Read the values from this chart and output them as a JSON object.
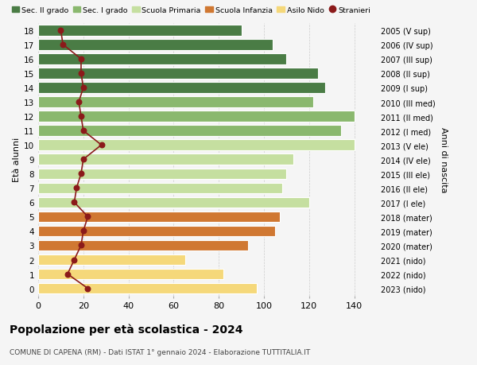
{
  "ages": [
    0,
    1,
    2,
    3,
    4,
    5,
    6,
    7,
    8,
    9,
    10,
    11,
    12,
    13,
    14,
    15,
    16,
    17,
    18
  ],
  "right_labels": [
    "2023 (nido)",
    "2022 (nido)",
    "2021 (nido)",
    "2020 (mater)",
    "2019 (mater)",
    "2018 (mater)",
    "2017 (I ele)",
    "2016 (II ele)",
    "2015 (III ele)",
    "2014 (IV ele)",
    "2013 (V ele)",
    "2012 (I med)",
    "2011 (II med)",
    "2010 (III med)",
    "2009 (I sup)",
    "2008 (II sup)",
    "2007 (III sup)",
    "2006 (IV sup)",
    "2005 (V sup)"
  ],
  "bar_values": [
    97,
    82,
    65,
    93,
    105,
    107,
    120,
    108,
    110,
    113,
    140,
    134,
    140,
    122,
    127,
    124,
    110,
    104,
    90
  ],
  "bar_colors": [
    "#f5d87a",
    "#f5d87a",
    "#f5d87a",
    "#d07832",
    "#d07832",
    "#d07832",
    "#c5dfa0",
    "#c5dfa0",
    "#c5dfa0",
    "#c5dfa0",
    "#c5dfa0",
    "#8ab86e",
    "#8ab86e",
    "#8ab86e",
    "#4a7c45",
    "#4a7c45",
    "#4a7c45",
    "#4a7c45",
    "#4a7c45"
  ],
  "stranieri_values": [
    22,
    13,
    16,
    19,
    20,
    22,
    16,
    17,
    19,
    20,
    28,
    20,
    19,
    18,
    20,
    19,
    19,
    11,
    10
  ],
  "title": "Popolazione per età scolastica - 2024",
  "subtitle": "COMUNE DI CAPENA (RM) - Dati ISTAT 1° gennaio 2024 - Elaborazione TUTTITALIA.IT",
  "ylabel_left": "Età alunni",
  "ylabel_right": "Anni di nascita",
  "legend_labels": [
    "Sec. II grado",
    "Sec. I grado",
    "Scuola Primaria",
    "Scuola Infanzia",
    "Asilo Nido",
    "Stranieri"
  ],
  "legend_colors": [
    "#4a7c45",
    "#8ab86e",
    "#c5dfa0",
    "#d07832",
    "#f5d87a",
    "#8b1a1a"
  ],
  "xlim": [
    0,
    150
  ],
  "xticks": [
    0,
    20,
    40,
    60,
    80,
    100,
    120,
    140
  ],
  "bg_color": "#f5f5f5",
  "stranieri_line_color": "#8b1a1a",
  "stranieri_dot_color": "#8b1a1a"
}
